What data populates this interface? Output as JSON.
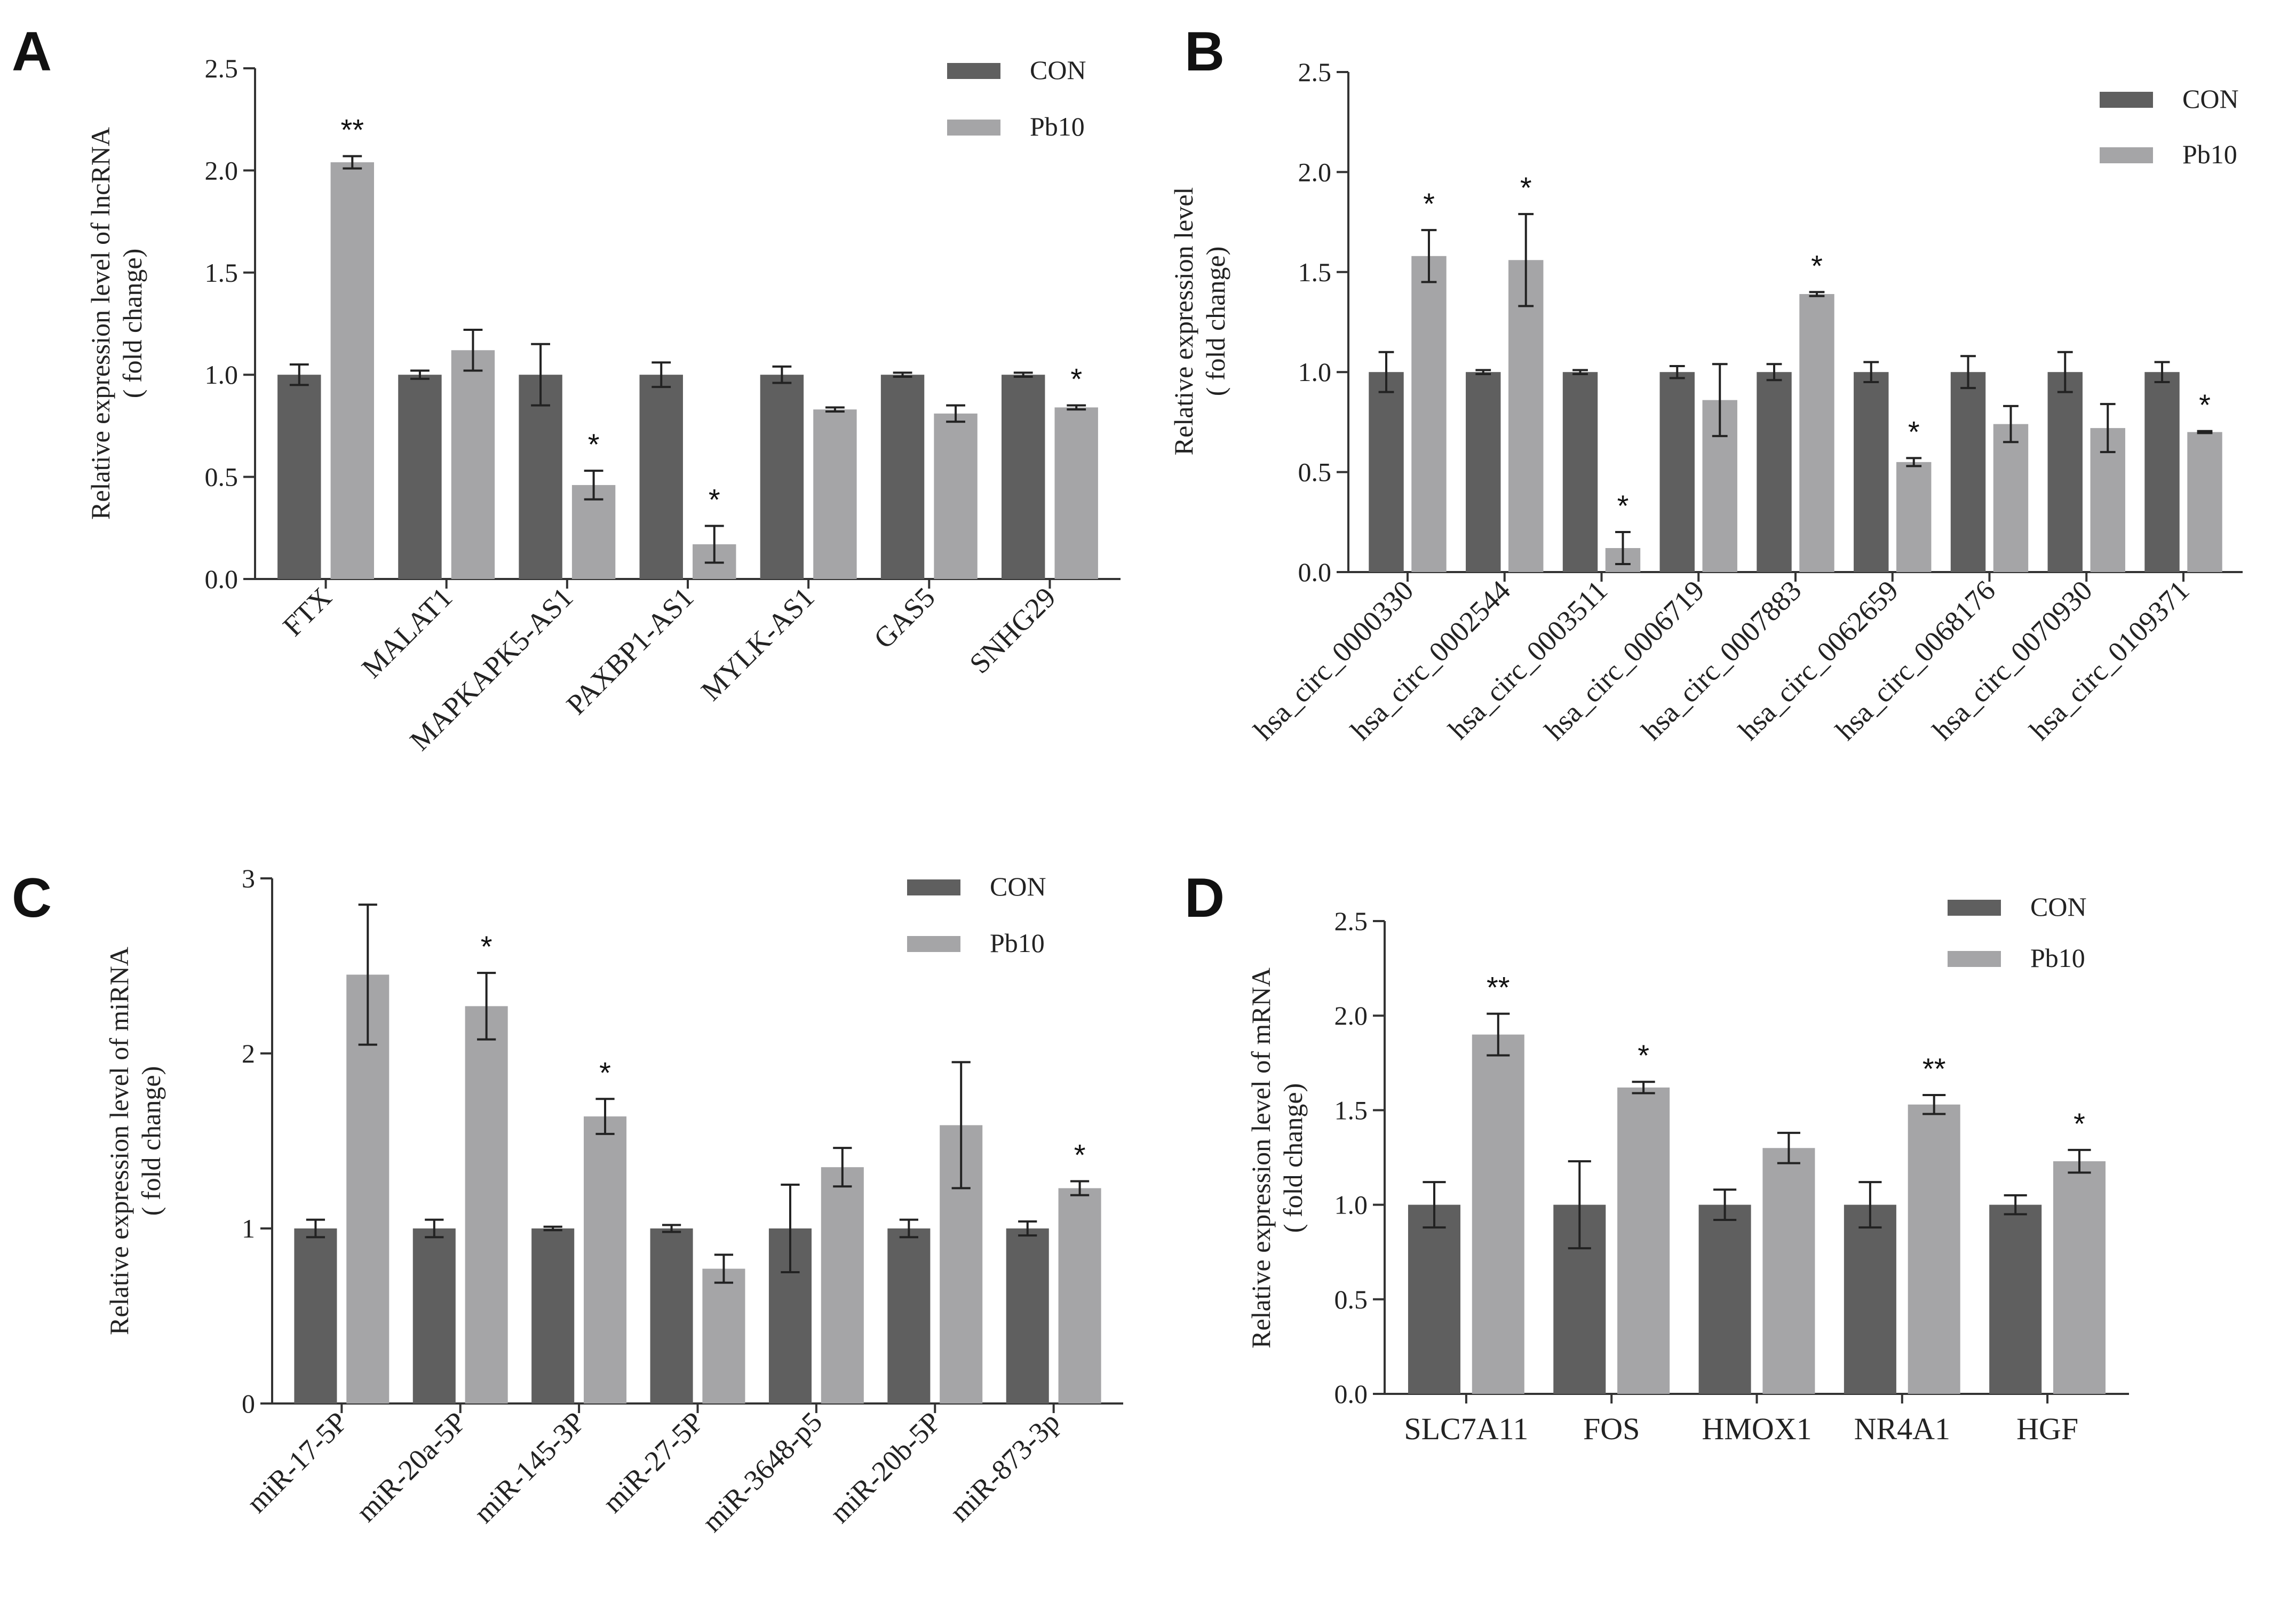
{
  "colors": {
    "con": "#5f5f5f",
    "pb10": "#a5a5a7"
  },
  "chart_data": [
    {
      "id": "A",
      "type": "bar",
      "panel_label": "A",
      "ylabel_line1": "Relative expression level of lncRNA",
      "ylabel_line2": "( fold change)",
      "xlabel": "",
      "ylim": [
        0,
        2.5
      ],
      "ytick_values": [
        0,
        0.5,
        1,
        1.5,
        2,
        2.5
      ],
      "ytick_labels": [
        "0.0",
        "0.5",
        "1.0",
        "1.5",
        "2.0",
        "2.5"
      ],
      "categories": [
        "FTX",
        "MALAT1",
        "MAPKAPK5-AS1",
        "PAXBP1-AS1",
        "MYLK-AS1",
        "GAS5",
        "SNHG29"
      ],
      "legend": [
        "CON",
        "Pb10"
      ],
      "series": [
        {
          "name": "CON",
          "values": [
            1.0,
            1.0,
            1.0,
            1.0,
            1.0,
            1.0,
            1.0
          ],
          "errors": [
            0.05,
            0.02,
            0.15,
            0.06,
            0.04,
            0.01,
            0.01
          ]
        },
        {
          "name": "Pb10",
          "values": [
            2.04,
            1.12,
            0.46,
            0.17,
            0.83,
            0.81,
            0.84
          ],
          "errors": [
            0.03,
            0.1,
            0.07,
            0.09,
            0.01,
            0.04,
            0.01
          ]
        }
      ],
      "significance": [
        "**",
        "",
        "*",
        "*",
        "",
        "",
        "*"
      ]
    },
    {
      "id": "B",
      "type": "bar",
      "panel_label": "B",
      "ylabel_line1": "Relative expression level",
      "ylabel_line2": "( fold change)",
      "xlabel": "",
      "ylim": [
        0,
        2.5
      ],
      "ytick_values": [
        0,
        0.5,
        1,
        1.5,
        2,
        2.5
      ],
      "ytick_labels": [
        "0.0",
        "0.5",
        "1.0",
        "1.5",
        "2.0",
        "2.5"
      ],
      "categories": [
        "hsa_circ_0000330",
        "hsa_circ_0002544",
        "hsa_circ_0003511",
        "hsa_circ_0006719",
        "hsa_circ_0007883",
        "hsa_circ_0062659",
        "hsa_circ_0068176",
        "hsa_circ_0070930",
        "hsa_circ_0109371"
      ],
      "legend": [
        "CON",
        "Pb10"
      ],
      "series": [
        {
          "name": "CON",
          "values": [
            1.0,
            1.0,
            1.0,
            1.0,
            1.0,
            1.0,
            1.0,
            1.0,
            1.0
          ],
          "errors": [
            0.1,
            0.01,
            0.01,
            0.03,
            0.04,
            0.05,
            0.08,
            0.1,
            0.05
          ]
        },
        {
          "name": "Pb10",
          "values": [
            1.58,
            1.56,
            0.12,
            0.86,
            1.39,
            0.55,
            0.74,
            0.72,
            0.7
          ],
          "errors": [
            0.13,
            0.23,
            0.08,
            0.18,
            0.01,
            0.02,
            0.09,
            0.12,
            0.005
          ]
        }
      ],
      "significance": [
        "*",
        "*",
        "*",
        "",
        "*",
        "*",
        "",
        "",
        "*"
      ]
    },
    {
      "id": "C",
      "type": "bar",
      "panel_label": "C",
      "ylabel_line1": "Relative expression level of miRNA",
      "ylabel_line2": "( fold change)",
      "xlabel": "",
      "ylim": [
        0,
        3
      ],
      "ytick_values": [
        0,
        1,
        2,
        3
      ],
      "ytick_labels": [
        "0",
        "1",
        "2",
        "3"
      ],
      "categories": [
        "miR-17-5P",
        "miR-20a-5P",
        "miR-145-3P",
        "miR-27-5P",
        "miR-3648-p5",
        "miR-20b-5P",
        "miR-873-3p"
      ],
      "legend": [
        "CON",
        "Pb10"
      ],
      "series": [
        {
          "name": "CON",
          "values": [
            1.0,
            1.0,
            1.0,
            1.0,
            1.0,
            1.0,
            1.0
          ],
          "errors": [
            0.05,
            0.05,
            0.01,
            0.02,
            0.25,
            0.05,
            0.04
          ]
        },
        {
          "name": "Pb10",
          "values": [
            2.45,
            2.27,
            1.64,
            0.77,
            1.35,
            1.59,
            1.23
          ],
          "errors": [
            0.4,
            0.19,
            0.1,
            0.08,
            0.11,
            0.36,
            0.04
          ]
        }
      ],
      "significance": [
        "",
        "*",
        "*",
        "",
        "",
        "",
        "*"
      ]
    },
    {
      "id": "D",
      "type": "bar",
      "panel_label": "D",
      "ylabel_line1": "Relative expression level of mRNA",
      "ylabel_line2": "( fold change)",
      "xlabel": "",
      "ylim": [
        0,
        2.5
      ],
      "ytick_values": [
        0,
        0.5,
        1,
        1.5,
        2,
        2.5
      ],
      "ytick_labels": [
        "0.0",
        "0.5",
        "1.0",
        "1.5",
        "2.0",
        "2.5"
      ],
      "categories": [
        "SLC7A11",
        "FOS",
        "HMOX1",
        "NR4A1",
        "HGF"
      ],
      "legend": [
        "CON",
        "Pb10"
      ],
      "series": [
        {
          "name": "CON",
          "values": [
            1.0,
            1.0,
            1.0,
            1.0,
            1.0
          ],
          "errors": [
            0.12,
            0.23,
            0.08,
            0.12,
            0.05
          ]
        },
        {
          "name": "Pb10",
          "values": [
            1.9,
            1.62,
            1.3,
            1.53,
            1.23
          ],
          "errors": [
            0.11,
            0.03,
            0.08,
            0.05,
            0.06
          ]
        }
      ],
      "significance": [
        "**",
        "*",
        "",
        "**",
        "*"
      ]
    }
  ]
}
